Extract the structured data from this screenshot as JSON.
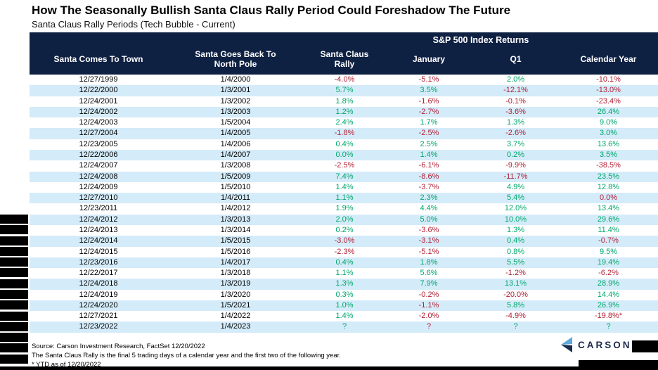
{
  "header": {
    "title": "How The Seasonally Bullish Santa Claus Rally Period Could Foreshadow The Future",
    "subtitle": "Santa Claus Rally Periods (Tech Bubble - Current)"
  },
  "chart_data": {
    "type": "table",
    "title": "How The Seasonally Bullish Santa Claus Rally Period Could Foreshadow The Future",
    "subtitle": "Santa Claus Rally Periods (Tech Bubble - Current)",
    "group_header": "S&P 500 Index Returns",
    "group_header_span": [
      "Santa Claus Rally",
      "January",
      "Q1",
      "Calendar Year"
    ],
    "columns": [
      "Santa Comes To Town",
      "Santa Goes Back To\nNorth Pole",
      "Santa Claus\nRally",
      "January",
      "Q1",
      "Calendar Year"
    ],
    "rows": [
      [
        "12/27/1999",
        "1/4/2000",
        [
          "-4.0%",
          "neg"
        ],
        [
          "-5.1%",
          "neg"
        ],
        [
          "2.0%",
          "pos"
        ],
        [
          "-10.1%",
          "neg"
        ]
      ],
      [
        "12/22/2000",
        "1/3/2001",
        [
          "5.7%",
          "pos"
        ],
        [
          "3.5%",
          "pos"
        ],
        [
          "-12.1%",
          "neg"
        ],
        [
          "-13.0%",
          "neg"
        ]
      ],
      [
        "12/24/2001",
        "1/3/2002",
        [
          "1.8%",
          "pos"
        ],
        [
          "-1.6%",
          "neg"
        ],
        [
          "-0.1%",
          "neg"
        ],
        [
          "-23.4%",
          "neg"
        ]
      ],
      [
        "12/24/2002",
        "1/3/2003",
        [
          "1.2%",
          "pos"
        ],
        [
          "-2.7%",
          "neg"
        ],
        [
          "-3.6%",
          "neg"
        ],
        [
          "26.4%",
          "pos"
        ]
      ],
      [
        "12/24/2003",
        "1/5/2004",
        [
          "2.4%",
          "pos"
        ],
        [
          "1.7%",
          "pos"
        ],
        [
          "1.3%",
          "pos"
        ],
        [
          "9.0%",
          "pos"
        ]
      ],
      [
        "12/27/2004",
        "1/4/2005",
        [
          "-1.8%",
          "neg"
        ],
        [
          "-2.5%",
          "neg"
        ],
        [
          "-2.6%",
          "neg"
        ],
        [
          "3.0%",
          "pos"
        ]
      ],
      [
        "12/23/2005",
        "1/4/2006",
        [
          "0.4%",
          "pos"
        ],
        [
          "2.5%",
          "pos"
        ],
        [
          "3.7%",
          "pos"
        ],
        [
          "13.6%",
          "pos"
        ]
      ],
      [
        "12/22/2006",
        "1/4/2007",
        [
          "0.0%",
          "pos"
        ],
        [
          "1.4%",
          "pos"
        ],
        [
          "0.2%",
          "pos"
        ],
        [
          "3.5%",
          "pos"
        ]
      ],
      [
        "12/24/2007",
        "1/3/2008",
        [
          "-2.5%",
          "neg"
        ],
        [
          "-6.1%",
          "neg"
        ],
        [
          "-9.9%",
          "neg"
        ],
        [
          "-38.5%",
          "neg"
        ]
      ],
      [
        "12/24/2008",
        "1/5/2009",
        [
          "7.4%",
          "pos"
        ],
        [
          "-8.6%",
          "neg"
        ],
        [
          "-11.7%",
          "neg"
        ],
        [
          "23.5%",
          "pos"
        ]
      ],
      [
        "12/24/2009",
        "1/5/2010",
        [
          "1.4%",
          "pos"
        ],
        [
          "-3.7%",
          "neg"
        ],
        [
          "4.9%",
          "pos"
        ],
        [
          "12.8%",
          "pos"
        ]
      ],
      [
        "12/27/2010",
        "1/4/2011",
        [
          "1.1%",
          "pos"
        ],
        [
          "2.3%",
          "pos"
        ],
        [
          "5.4%",
          "pos"
        ],
        [
          "0.0%",
          "neg"
        ]
      ],
      [
        "12/23/2011",
        "1/4/2012",
        [
          "1.9%",
          "pos"
        ],
        [
          "4.4%",
          "pos"
        ],
        [
          "12.0%",
          "pos"
        ],
        [
          "13.4%",
          "pos"
        ]
      ],
      [
        "12/24/2012",
        "1/3/2013",
        [
          "2.0%",
          "pos"
        ],
        [
          "5.0%",
          "pos"
        ],
        [
          "10.0%",
          "pos"
        ],
        [
          "29.6%",
          "pos"
        ]
      ],
      [
        "12/24/2013",
        "1/3/2014",
        [
          "0.2%",
          "pos"
        ],
        [
          "-3.6%",
          "neg"
        ],
        [
          "1.3%",
          "pos"
        ],
        [
          "11.4%",
          "pos"
        ]
      ],
      [
        "12/24/2014",
        "1/5/2015",
        [
          "-3.0%",
          "neg"
        ],
        [
          "-3.1%",
          "neg"
        ],
        [
          "0.4%",
          "pos"
        ],
        [
          "-0.7%",
          "neg"
        ]
      ],
      [
        "12/24/2015",
        "1/5/2016",
        [
          "-2.3%",
          "neg"
        ],
        [
          "-5.1%",
          "neg"
        ],
        [
          "0.8%",
          "pos"
        ],
        [
          "9.5%",
          "pos"
        ]
      ],
      [
        "12/23/2016",
        "1/4/2017",
        [
          "0.4%",
          "pos"
        ],
        [
          "1.8%",
          "pos"
        ],
        [
          "5.5%",
          "pos"
        ],
        [
          "19.4%",
          "pos"
        ]
      ],
      [
        "12/22/2017",
        "1/3/2018",
        [
          "1.1%",
          "pos"
        ],
        [
          "5.6%",
          "pos"
        ],
        [
          "-1.2%",
          "neg"
        ],
        [
          "-6.2%",
          "neg"
        ]
      ],
      [
        "12/24/2018",
        "1/3/2019",
        [
          "1.3%",
          "pos"
        ],
        [
          "7.9%",
          "pos"
        ],
        [
          "13.1%",
          "pos"
        ],
        [
          "28.9%",
          "pos"
        ]
      ],
      [
        "12/24/2019",
        "1/3/2020",
        [
          "0.3%",
          "pos"
        ],
        [
          "-0.2%",
          "neg"
        ],
        [
          "-20.0%",
          "neg"
        ],
        [
          "14.4%",
          "pos"
        ]
      ],
      [
        "12/24/2020",
        "1/5/2021",
        [
          "1.0%",
          "pos"
        ],
        [
          "-1.1%",
          "neg"
        ],
        [
          "5.8%",
          "pos"
        ],
        [
          "26.9%",
          "pos"
        ]
      ],
      [
        "12/27/2021",
        "1/4/2022",
        [
          "1.4%",
          "pos"
        ],
        [
          "-2.0%",
          "neg"
        ],
        [
          "-4.9%",
          "neg"
        ],
        [
          "-19.8%*",
          "neg"
        ]
      ],
      [
        "12/23/2022",
        "1/4/2023",
        [
          "?",
          "pos"
        ],
        [
          "?",
          "neg"
        ],
        [
          "?",
          "pos"
        ],
        [
          "?",
          "pos"
        ]
      ]
    ]
  },
  "footer": {
    "source": "Source: Carson Investment Research, FactSet 12/20/2022",
    "note": "The Santa Claus Rally is the final 5 trading days of a calendar year and the first two of the following year.",
    "ytd_note": "* YTD as of 12/20/2022"
  },
  "logo": {
    "text": "CARSON"
  },
  "colors": {
    "positive": "#00A86B",
    "negative": "#B22236",
    "header_bg": "#0F2143",
    "row_stripe": "#D4EBF9",
    "logo_blue": "#5FA8DC",
    "logo_navy": "#1B2B4B"
  }
}
